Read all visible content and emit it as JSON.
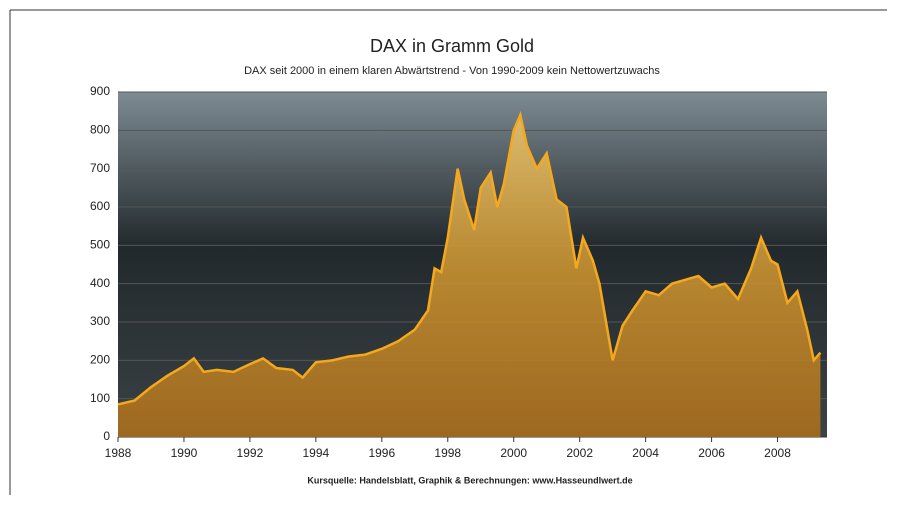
{
  "chart_data": {
    "type": "line",
    "title": "DAX in Gramm Gold",
    "subtitle": "DAX seit 2000 in einem klaren Abwärtstrend - Von 1990-2009 kein Nettowertzuwachs",
    "source": "Kursquelle: Handelsblatt, Graphik & Berechnungen: www.Hasseundlwert.de",
    "x": [
      1988.0,
      1988.5,
      1989.0,
      1989.5,
      1990.0,
      1990.3,
      1990.6,
      1991.0,
      1991.5,
      1992.0,
      1992.4,
      1992.8,
      1993.3,
      1993.6,
      1994.0,
      1994.5,
      1995.0,
      1995.5,
      1996.0,
      1996.5,
      1997.0,
      1997.4,
      1997.6,
      1997.8,
      1998.0,
      1998.3,
      1998.5,
      1998.8,
      1999.0,
      1999.3,
      1999.5,
      1999.7,
      2000.0,
      2000.2,
      2000.4,
      2000.7,
      2001.0,
      2001.3,
      2001.6,
      2001.9,
      2002.1,
      2002.4,
      2002.6,
      2002.8,
      2003.0,
      2003.3,
      2003.6,
      2004.0,
      2004.4,
      2004.8,
      2005.2,
      2005.6,
      2006.0,
      2006.4,
      2006.8,
      2007.2,
      2007.5,
      2007.8,
      2008.0,
      2008.3,
      2008.6,
      2008.9,
      2009.1,
      2009.3
    ],
    "series": [
      {
        "color": "#f5a81c",
        "values": [
          85,
          95,
          130,
          160,
          185,
          205,
          170,
          175,
          170,
          190,
          205,
          180,
          175,
          155,
          195,
          200,
          210,
          215,
          230,
          250,
          280,
          330,
          440,
          430,
          520,
          700,
          620,
          540,
          650,
          690,
          600,
          660,
          800,
          840,
          760,
          700,
          740,
          620,
          600,
          440,
          520,
          460,
          400,
          300,
          200,
          290,
          330,
          380,
          370,
          400,
          410,
          420,
          390,
          400,
          360,
          440,
          520,
          460,
          450,
          350,
          380,
          280,
          200,
          220
        ]
      }
    ],
    "xlim": [
      1988,
      2009.5
    ],
    "xticks": [
      1988,
      1990,
      1992,
      1994,
      1996,
      1998,
      2000,
      2002,
      2004,
      2006,
      2008
    ],
    "ylim": [
      0,
      900
    ],
    "yticks": [
      0,
      100,
      200,
      300,
      400,
      500,
      600,
      700,
      800,
      900
    ],
    "grid": true
  }
}
